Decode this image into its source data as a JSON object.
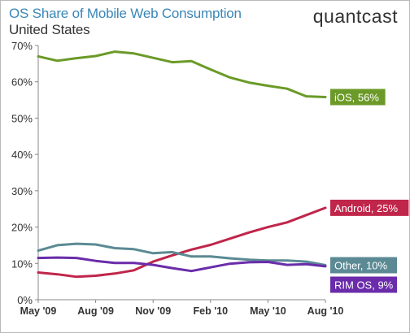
{
  "header": {
    "title": "OS Share of Mobile Web Consumption",
    "subtitle": "United States",
    "brand": "quantcast"
  },
  "chart_data": {
    "type": "line",
    "title": "OS Share of Mobile Web Consumption",
    "subtitle": "United States",
    "xlabel": "",
    "ylabel": "",
    "ylim": [
      0,
      70
    ],
    "yticks": [
      "0%",
      "10%",
      "20%",
      "30%",
      "40%",
      "50%",
      "60%",
      "70%"
    ],
    "x": [
      "May '09",
      "Jun '09",
      "Jul '09",
      "Aug '09",
      "Sep '09",
      "Oct '09",
      "Nov '09",
      "Dec '09",
      "Jan '10",
      "Feb '10",
      "Mar '10",
      "Apr '10",
      "May '10",
      "Jun '10",
      "Jul '10",
      "Aug '10"
    ],
    "xtick_labels": [
      "May '09",
      "Aug '09",
      "Nov '09",
      "Feb '10",
      "May '10",
      "Aug '10"
    ],
    "grid": false,
    "legend": "labels at line ends (right)",
    "series": [
      {
        "name": "iOS",
        "end_label": "iOS, 56%",
        "color": "#6b9a28",
        "values": [
          67.0,
          65.8,
          66.5,
          67.1,
          68.3,
          67.8,
          66.6,
          65.4,
          65.7,
          63.4,
          61.2,
          59.8,
          58.9,
          58.1,
          56.0,
          55.8
        ]
      },
      {
        "name": "Android",
        "end_label": "Android, 25%",
        "color": "#c0254a",
        "values": [
          7.5,
          7.0,
          6.3,
          6.6,
          7.2,
          8.1,
          10.5,
          12.2,
          13.8,
          15.1,
          16.8,
          18.5,
          20.0,
          21.3,
          23.3,
          25.3
        ]
      },
      {
        "name": "Other",
        "end_label": "Other, 10%",
        "color": "#5b8a94",
        "values": [
          13.5,
          15.0,
          15.4,
          15.2,
          14.2,
          13.9,
          12.8,
          13.1,
          11.9,
          11.9,
          11.4,
          11.0,
          10.8,
          10.8,
          10.5,
          9.5
        ]
      },
      {
        "name": "RIM OS",
        "end_label": "RIM OS, 9%",
        "color": "#6a2caa",
        "values": [
          11.5,
          11.6,
          11.5,
          10.7,
          10.1,
          10.1,
          9.6,
          8.7,
          7.9,
          8.9,
          9.9,
          10.3,
          10.4,
          9.6,
          9.8,
          9.2
        ]
      }
    ]
  }
}
